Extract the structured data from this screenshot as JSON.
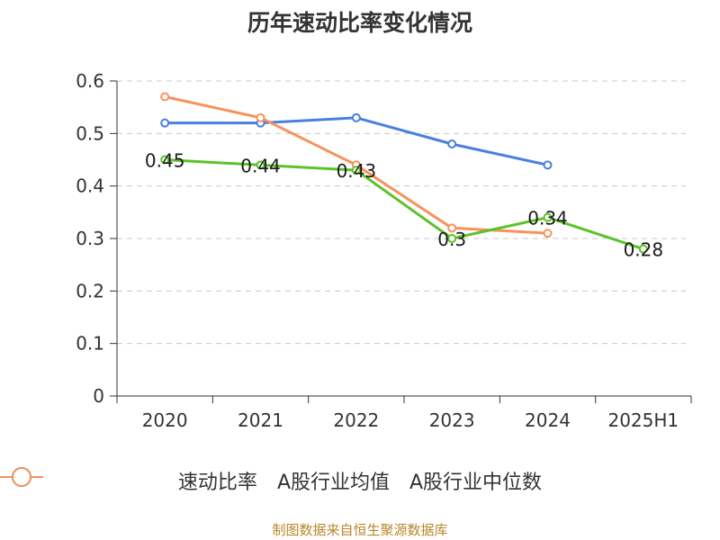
{
  "colors": {
    "series": [
      "#5ec12a",
      "#4a7fe0",
      "#f7925a"
    ],
    "axis": "#333333",
    "grid": "#c8c8c8",
    "source": "#b8862a"
  },
  "chart_data": {
    "type": "line",
    "title": "历年速动比率变化情况",
    "xlabel": "",
    "ylabel": "",
    "categories": [
      "2020",
      "2021",
      "2022",
      "2023",
      "2024",
      "2025H1"
    ],
    "y_ticks": [
      "0",
      "0.1",
      "0.2",
      "0.3",
      "0.4",
      "0.5",
      "0.6"
    ],
    "ylim": [
      0,
      0.6
    ],
    "grid": true,
    "legend_position": "bottom",
    "series": [
      {
        "name": "速动比率",
        "values": [
          0.45,
          0.44,
          0.43,
          0.3,
          0.34,
          0.28
        ],
        "labels": [
          "0.45",
          "0.44",
          "0.43",
          "0.3",
          "0.34",
          "0.28"
        ]
      },
      {
        "name": "A股行业均值",
        "values": [
          0.52,
          0.52,
          0.53,
          0.48,
          0.44,
          null
        ]
      },
      {
        "name": "A股行业中位数",
        "values": [
          0.57,
          0.53,
          0.44,
          0.32,
          0.31,
          null
        ]
      }
    ]
  },
  "source_text": "制图数据来自恒生聚源数据库"
}
